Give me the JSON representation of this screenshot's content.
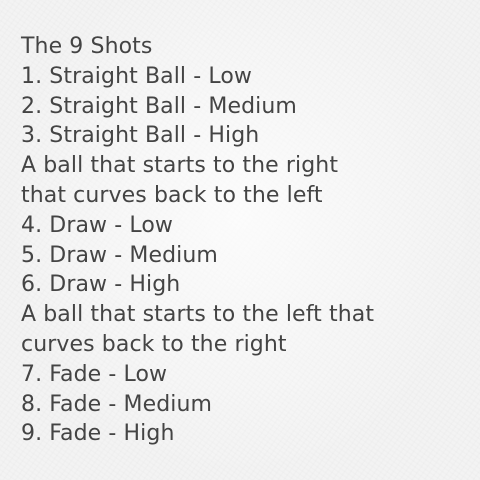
{
  "note": {
    "lines": [
      "The 9 Shots",
      "1. Straight Ball - Low",
      "2. Straight Ball - Medium",
      "3. Straight Ball - High",
      "A ball that starts to the right",
      "that curves back to the left",
      "4. Draw - Low",
      "5. Draw - Medium",
      "6. Draw - High",
      "A ball that starts to the left that",
      "curves back to the right",
      "7. Fade - Low",
      "8. Fade - Medium",
      "9. Fade - High"
    ]
  }
}
